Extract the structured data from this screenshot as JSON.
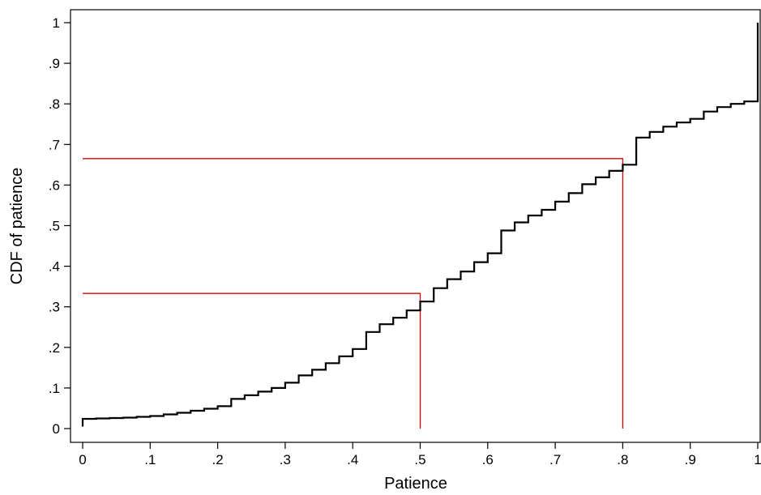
{
  "chart_data": {
    "type": "line",
    "xlabel": "Patience",
    "ylabel": "CDF of patience",
    "xlim": [
      0,
      1
    ],
    "ylim": [
      0,
      1
    ],
    "xticks": [
      "0",
      ".1",
      ".2",
      ".3",
      ".4",
      ".5",
      ".6",
      ".7",
      ".8",
      ".9",
      "1"
    ],
    "yticks": [
      "0",
      ".1",
      ".2",
      ".3",
      ".4",
      ".5",
      ".6",
      ".7",
      ".8",
      ".9",
      "1"
    ],
    "grid": false,
    "series": [
      {
        "style": "step",
        "color": "#000000",
        "x": [
          0,
          0,
          0.02,
          0.04,
          0.06,
          0.08,
          0.1,
          0.12,
          0.14,
          0.16,
          0.18,
          0.2,
          0.22,
          0.24,
          0.26,
          0.28,
          0.3,
          0.32,
          0.34,
          0.36,
          0.38,
          0.4,
          0.42,
          0.44,
          0.46,
          0.48,
          0.5,
          0.52,
          0.54,
          0.56,
          0.58,
          0.6,
          0.62,
          0.64,
          0.66,
          0.68,
          0.7,
          0.72,
          0.74,
          0.76,
          0.78,
          0.8,
          0.82,
          0.84,
          0.86,
          0.88,
          0.9,
          0.92,
          0.94,
          0.96,
          0.98,
          1,
          1
        ],
        "y": [
          0.005,
          0.024,
          0.025,
          0.026,
          0.027,
          0.029,
          0.031,
          0.035,
          0.039,
          0.044,
          0.049,
          0.055,
          0.073,
          0.082,
          0.091,
          0.1,
          0.113,
          0.131,
          0.145,
          0.161,
          0.178,
          0.196,
          0.238,
          0.257,
          0.273,
          0.291,
          0.313,
          0.346,
          0.368,
          0.387,
          0.41,
          0.432,
          0.488,
          0.508,
          0.525,
          0.539,
          0.559,
          0.58,
          0.602,
          0.619,
          0.635,
          0.65,
          0.717,
          0.731,
          0.744,
          0.754,
          0.763,
          0.781,
          0.792,
          0.8,
          0.806,
          0.812,
          1.0
        ]
      }
    ],
    "reference_lines": [
      {
        "color": "#dd0000",
        "points": [
          [
            0,
            0.333
          ],
          [
            0.5,
            0.333
          ],
          [
            0.5,
            0
          ]
        ]
      },
      {
        "color": "#dd0000",
        "points": [
          [
            0,
            0.665
          ],
          [
            0.8,
            0.665
          ],
          [
            0.8,
            0
          ]
        ]
      }
    ]
  }
}
